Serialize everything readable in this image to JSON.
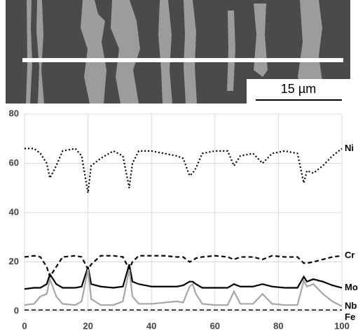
{
  "image": {
    "scale_bar": "15 µm"
  },
  "chart_data": {
    "type": "line",
    "x": [
      0,
      3,
      5,
      7,
      8,
      10,
      12,
      16,
      18,
      20,
      21,
      24,
      28,
      31,
      33,
      34,
      36,
      40,
      44,
      48,
      50,
      52,
      53,
      54,
      56,
      60,
      64,
      66,
      68,
      72,
      75,
      78,
      82,
      86,
      88,
      89,
      91,
      94,
      97,
      100
    ],
    "series": [
      {
        "name": "Ni",
        "color": "#000000",
        "style": "dotted",
        "values": [
          66,
          66,
          64,
          60,
          54,
          59,
          65,
          66,
          63,
          48,
          59,
          62,
          65,
          63,
          50,
          60,
          65,
          65,
          64,
          63,
          62,
          55,
          56,
          58,
          64,
          65,
          65,
          59,
          63,
          64,
          60,
          64,
          65,
          64,
          52,
          57,
          56,
          59,
          63,
          66
        ]
      },
      {
        "name": "Cr",
        "color": "#000000",
        "style": "dashed",
        "values": [
          22,
          22.5,
          22,
          18,
          14,
          18,
          22,
          22.5,
          22,
          17,
          19,
          22.5,
          22.5,
          22,
          17,
          20,
          22.5,
          22.5,
          22.5,
          22,
          22,
          20,
          20.5,
          21.5,
          22,
          22.5,
          22,
          21,
          22,
          22,
          21,
          22.5,
          22,
          22,
          19.5,
          19.5,
          20,
          21,
          22,
          22.5
        ]
      },
      {
        "name": "Mo",
        "color": "#000000",
        "style": "solid",
        "values": [
          9,
          9.5,
          9.5,
          11,
          15,
          11,
          9.5,
          9.5,
          10,
          18,
          11,
          10,
          9.5,
          10,
          19,
          12,
          11,
          10,
          10,
          10,
          10.5,
          12,
          12,
          11,
          9.5,
          9.5,
          9.5,
          11,
          10,
          10,
          11,
          10,
          9.5,
          9.5,
          14,
          12,
          13,
          12,
          10.5,
          9.5
        ]
      },
      {
        "name": "Nb",
        "color": "#a6a6a6",
        "style": "solid",
        "values": [
          2.5,
          3,
          6,
          7,
          13,
          6,
          3,
          2.5,
          4,
          17,
          5,
          2.5,
          2.5,
          4,
          17,
          6,
          3,
          3,
          3.5,
          4,
          3.5,
          10,
          11,
          7,
          3,
          2.5,
          2.5,
          8,
          3,
          3,
          7,
          3,
          2.5,
          2.5,
          12.5,
          10,
          11,
          7,
          4,
          2
        ]
      },
      {
        "name": "Fe",
        "color": "#000000",
        "style": "dashed",
        "values": [
          0.5,
          0.5,
          0.5,
          0.5,
          0.5,
          0.5,
          0.5,
          0.5,
          0.5,
          0.5,
          0.5,
          0.5,
          0.5,
          0.5,
          0.5,
          0.5,
          0.5,
          0.5,
          0.5,
          0.5,
          0.5,
          0.5,
          0.5,
          0.5,
          0.5,
          0.5,
          0.5,
          0.5,
          0.5,
          0.5,
          0.5,
          0.5,
          0.5,
          0.5,
          0.5,
          0.5,
          0.5,
          0.5,
          0.5,
          0.5
        ]
      }
    ],
    "xlim": [
      0,
      100
    ],
    "xticks": [
      0,
      20,
      40,
      60,
      80,
      100
    ],
    "ylim": [
      0,
      80
    ],
    "yticks": [
      0,
      20,
      40,
      60,
      80
    ],
    "grid": true
  }
}
